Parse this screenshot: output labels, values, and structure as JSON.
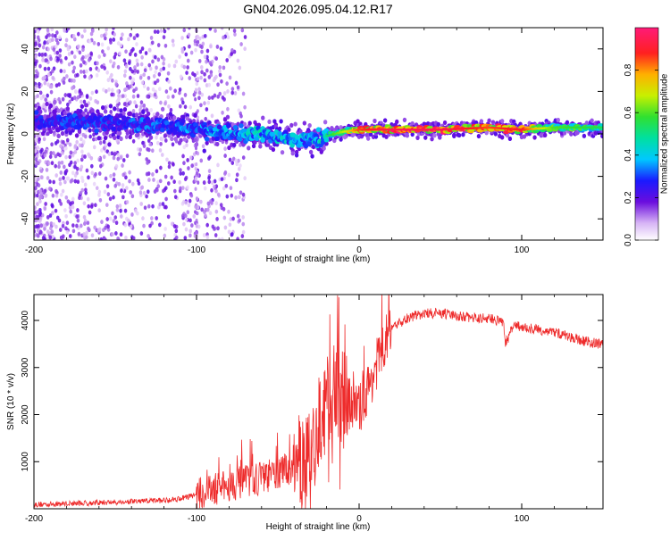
{
  "title": "GN04.2026.095.04.12.R17",
  "chart_data": [
    {
      "type": "heatmap",
      "name": "spectrogram",
      "xlabel": "Height of straight line (km)",
      "ylabel": "Frequency (Hz)",
      "xlim": [
        -200,
        150
      ],
      "ylim": [
        -50,
        50
      ],
      "xticks": [
        -200,
        -100,
        0,
        100
      ],
      "xtick_labels": [
        "-200",
        "-100",
        "0",
        "100"
      ],
      "yticks": [
        -40,
        -20,
        0,
        20,
        40
      ],
      "ytick_labels": [
        "-40",
        "-20",
        "0",
        "20",
        "40"
      ],
      "colorbar": {
        "label": "Normalized spectral amplitude",
        "range": [
          0,
          1
        ],
        "ticks": [
          0.0,
          0.2,
          0.4,
          0.6,
          0.8
        ],
        "tick_labels": [
          "0.0",
          "0.2",
          "0.4",
          "0.6",
          "0.8"
        ]
      },
      "ridge": {
        "x": [
          -190,
          -150,
          -120,
          -100,
          -80,
          -60,
          -40,
          -25,
          -10,
          0,
          20,
          50,
          80,
          100,
          120,
          150
        ],
        "y": [
          6,
          5,
          4,
          2,
          0,
          0,
          -3,
          -2,
          1,
          2,
          2,
          2,
          3,
          2,
          3,
          3
        ],
        "peak_amplitude": [
          0.3,
          0.3,
          0.35,
          0.35,
          0.4,
          0.45,
          0.4,
          0.45,
          0.65,
          0.85,
          0.95,
          0.95,
          0.85,
          0.9,
          0.6,
          0.55
        ]
      }
    },
    {
      "type": "line",
      "name": "snr",
      "xlabel": "Height of straight line (km)",
      "ylabel": "SNR (10 * v/v)",
      "xlim": [
        -200,
        150
      ],
      "ylim": [
        0,
        4550
      ],
      "xticks": [
        -200,
        -100,
        0,
        100
      ],
      "xtick_labels": [
        "-200",
        "-100",
        "0",
        "100"
      ],
      "yticks": [
        1000,
        2000,
        3000,
        4000
      ],
      "ytick_labels": [
        "1000",
        "2000",
        "3000",
        "4000"
      ],
      "series": [
        {
          "name": "SNR",
          "color": "#ee2b2b",
          "x": [
            -200,
            -180,
            -160,
            -140,
            -120,
            -110,
            -100,
            -90,
            -80,
            -70,
            -60,
            -50,
            -40,
            -30,
            -25,
            -20,
            -15,
            -10,
            -5,
            0,
            5,
            10,
            15,
            20,
            25,
            30,
            40,
            50,
            60,
            70,
            80,
            85,
            89,
            90,
            95,
            100,
            110,
            120,
            130,
            140,
            150
          ],
          "y": [
            90,
            110,
            130,
            150,
            180,
            220,
            300,
            400,
            500,
            580,
            650,
            750,
            900,
            1300,
            1700,
            2200,
            2500,
            2400,
            2200,
            2100,
            2500,
            3000,
            3500,
            3800,
            3950,
            4050,
            4150,
            4150,
            4100,
            4050,
            4050,
            4000,
            3950,
            3500,
            3900,
            3850,
            3800,
            3750,
            3650,
            3550,
            3480
          ]
        }
      ],
      "noise": [
        {
          "from": -200,
          "to": -100,
          "amplitude": 60
        },
        {
          "from": -100,
          "to": -40,
          "amplitude": 350
        },
        {
          "from": -40,
          "to": -5,
          "amplitude": 1000
        },
        {
          "from": -5,
          "to": 20,
          "amplitude": 550
        },
        {
          "from": 20,
          "to": 150,
          "amplitude": 110
        }
      ]
    }
  ]
}
